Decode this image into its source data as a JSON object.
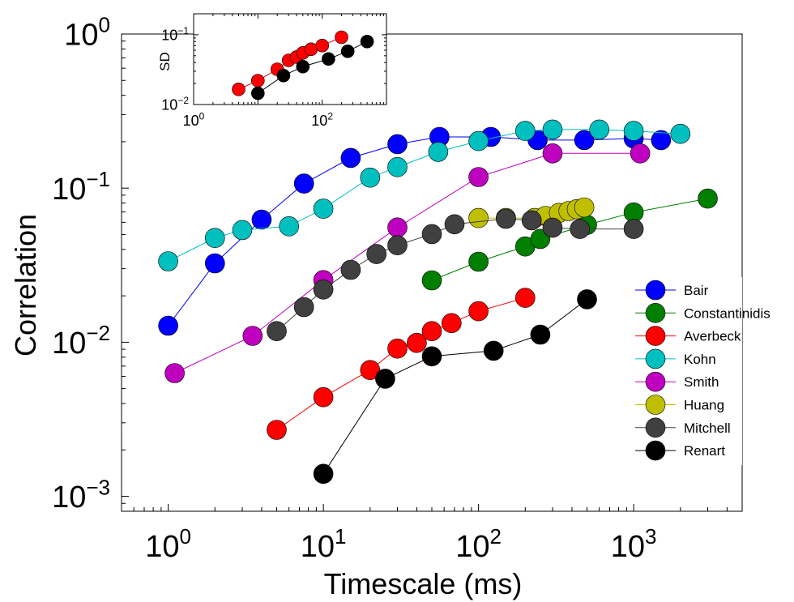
{
  "chart_data": [
    {
      "type": "line",
      "xlabel": "Timescale (ms)",
      "ylabel": "Correlation",
      "xscale": "log",
      "yscale": "log",
      "xlim": [
        0.5,
        5000
      ],
      "ylim": [
        0.0008,
        1
      ],
      "x_ticks": [
        1,
        10,
        100,
        1000
      ],
      "x_tick_labels": [
        {
          "base": "10",
          "exp": "0"
        },
        {
          "base": "10",
          "exp": "1"
        },
        {
          "base": "10",
          "exp": "2"
        },
        {
          "base": "10",
          "exp": "3"
        }
      ],
      "y_ticks": [
        0.001,
        0.01,
        0.1,
        1
      ],
      "y_tick_labels": [
        {
          "base": "10",
          "exp": "−3"
        },
        {
          "base": "10",
          "exp": "−2"
        },
        {
          "base": "10",
          "exp": "−1"
        },
        {
          "base": "10",
          "exp": "0"
        }
      ],
      "grid": false,
      "legend_position": "right",
      "series": [
        {
          "name": "Bair",
          "color": "#0000ff",
          "x": [
            1,
            2,
            4,
            7.5,
            15,
            30,
            56,
            120,
            240,
            480,
            1000,
            1500
          ],
          "y": [
            0.0128,
            0.0325,
            0.0625,
            0.107,
            0.157,
            0.193,
            0.215,
            0.215,
            0.205,
            0.205,
            0.21,
            0.205
          ]
        },
        {
          "name": "Constantinidis",
          "color": "#007f00",
          "x": [
            50,
            100,
            200,
            250,
            500,
            1000,
            3000
          ],
          "y": [
            0.0252,
            0.0333,
            0.0418,
            0.0468,
            0.0578,
            0.0695,
            0.0855
          ]
        },
        {
          "name": "Averbeck",
          "color": "#ff0000",
          "x": [
            5,
            10,
            20,
            30,
            40,
            50,
            67,
            100,
            200
          ],
          "y": [
            0.0027,
            0.0044,
            0.0066,
            0.0091,
            0.0099,
            0.0118,
            0.0133,
            0.0159,
            0.0194
          ]
        },
        {
          "name": "Kohn",
          "color": "#00bfbf",
          "x": [
            1,
            2,
            3,
            6,
            10,
            20,
            30,
            55,
            100,
            200,
            300,
            600,
            1000,
            2000
          ],
          "y": [
            0.0335,
            0.0475,
            0.0535,
            0.0565,
            0.0735,
            0.117,
            0.137,
            0.172,
            0.202,
            0.235,
            0.24,
            0.24,
            0.235,
            0.225
          ]
        },
        {
          "name": "Smith",
          "color": "#bf00bf",
          "x": [
            1.1,
            3.5,
            10,
            30,
            100,
            300,
            1100
          ],
          "y": [
            0.0063,
            0.011,
            0.0253,
            0.0555,
            0.118,
            0.168,
            0.168
          ]
        },
        {
          "name": "Huang",
          "color": "#bfbf00",
          "x": [
            100,
            150,
            230,
            270,
            330,
            380,
            430,
            480
          ],
          "y": [
            0.064,
            0.064,
            0.064,
            0.066,
            0.069,
            0.071,
            0.073,
            0.075
          ]
        },
        {
          "name": "Mitchell",
          "color": "#404040",
          "x": [
            5,
            7.5,
            10,
            15,
            22,
            30,
            50,
            70,
            150,
            220,
            300,
            450,
            1000
          ],
          "y": [
            0.0118,
            0.0169,
            0.022,
            0.0295,
            0.0373,
            0.0426,
            0.0503,
            0.0583,
            0.0633,
            0.0618,
            0.0553,
            0.0543,
            0.0543
          ]
        },
        {
          "name": "Renart",
          "color": "#000000",
          "x": [
            10,
            25,
            50,
            125,
            250,
            500
          ],
          "y": [
            0.0014,
            0.0058,
            0.0081,
            0.0088,
            0.0112,
            0.019
          ]
        }
      ]
    },
    {
      "type": "line",
      "xlabel": "",
      "ylabel": "SD",
      "xscale": "log",
      "yscale": "log",
      "xlim": [
        1,
        1000
      ],
      "ylim": [
        0.01,
        0.2
      ],
      "x_ticks": [
        1,
        100
      ],
      "x_tick_labels": [
        {
          "base": "10",
          "exp": "0"
        },
        {
          "base": "10",
          "exp": "2"
        }
      ],
      "y_ticks": [
        0.01,
        0.1
      ],
      "y_tick_labels": [
        {
          "base": "10",
          "exp": "−2"
        },
        {
          "base": "10",
          "exp": "−1"
        }
      ],
      "grid": false,
      "series": [
        {
          "color": "#ff0000",
          "x": [
            5,
            10,
            20,
            30,
            40,
            50,
            67,
            100,
            200
          ],
          "y": [
            0.0165,
            0.022,
            0.032,
            0.043,
            0.048,
            0.055,
            0.062,
            0.07,
            0.092
          ]
        },
        {
          "color": "#000000",
          "x": [
            10,
            25,
            50,
            125,
            250,
            500
          ],
          "y": [
            0.0145,
            0.026,
            0.035,
            0.045,
            0.058,
            0.08
          ]
        }
      ]
    }
  ]
}
